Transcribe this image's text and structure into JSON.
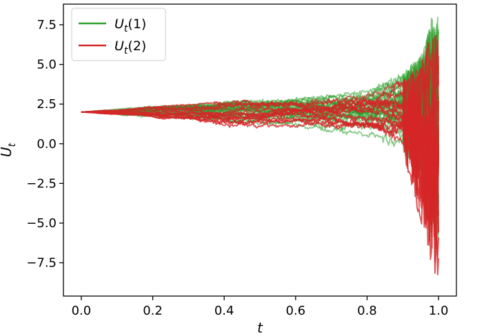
{
  "chart_data": {
    "type": "line",
    "xlabel": "t",
    "ylabel": "U_t",
    "xlim": [
      -0.05,
      1.05
    ],
    "ylim": [
      -9.6,
      8.8
    ],
    "x_ticks": [
      0.0,
      0.2,
      0.4,
      0.6,
      0.8,
      1.0
    ],
    "x_tick_labels": [
      "0.0",
      "0.2",
      "0.4",
      "0.6",
      "0.8",
      "1.0"
    ],
    "y_ticks": [
      7.5,
      5.0,
      2.5,
      0.0,
      -2.5,
      -5.0,
      -7.5
    ],
    "y_tick_labels": [
      "7.5",
      "5.0",
      "2.5",
      "0.0",
      "−2.5",
      "−5.0",
      "−7.5"
    ],
    "grid": false,
    "legend_position": "top-left",
    "legend": [
      {
        "label_main": "U",
        "label_sub": "t",
        "label_tail": "(1)",
        "color": "#2ca02c"
      },
      {
        "label_main": "U",
        "label_sub": "t",
        "label_tail": "(2)",
        "color": "#d62728"
      }
    ],
    "series": [
      {
        "color": "#2ca02c",
        "paths_count": 30,
        "x": [
          0.0,
          0.1,
          0.2,
          0.3,
          0.4,
          0.5,
          0.6,
          0.7,
          0.8,
          0.9,
          0.95,
          0.98,
          1.0
        ],
        "mean": [
          2.0,
          2.0,
          2.0,
          2.0,
          2.0,
          2.0,
          2.0,
          2.0,
          2.0,
          2.0,
          2.0,
          2.0,
          2.0
        ],
        "spread_upper": [
          2.0,
          2.2,
          2.4,
          2.6,
          2.7,
          2.8,
          3.0,
          3.1,
          3.4,
          4.5,
          5.5,
          8.0,
          8.0
        ],
        "spread_lower": [
          2.0,
          1.8,
          1.6,
          1.4,
          1.2,
          1.1,
          1.0,
          0.7,
          0.4,
          -0.5,
          -2.0,
          -6.0,
          -7.0
        ]
      },
      {
        "color": "#d62728",
        "paths_count": 30,
        "x": [
          0.0,
          0.1,
          0.2,
          0.3,
          0.4,
          0.5,
          0.6,
          0.7,
          0.8,
          0.9,
          0.95,
          0.98,
          1.0
        ],
        "mean": [
          2.0,
          2.0,
          2.0,
          2.0,
          2.0,
          2.0,
          2.0,
          2.0,
          2.0,
          2.0,
          2.0,
          2.0,
          2.0
        ],
        "spread_upper": [
          2.0,
          2.2,
          2.4,
          2.5,
          2.7,
          2.8,
          2.9,
          3.0,
          3.4,
          4.0,
          5.0,
          7.0,
          7.0
        ],
        "spread_lower": [
          2.0,
          1.8,
          1.6,
          1.4,
          1.0,
          1.0,
          1.0,
          0.8,
          0.4,
          -0.5,
          -5.0,
          -7.5,
          -9.0
        ]
      }
    ]
  }
}
